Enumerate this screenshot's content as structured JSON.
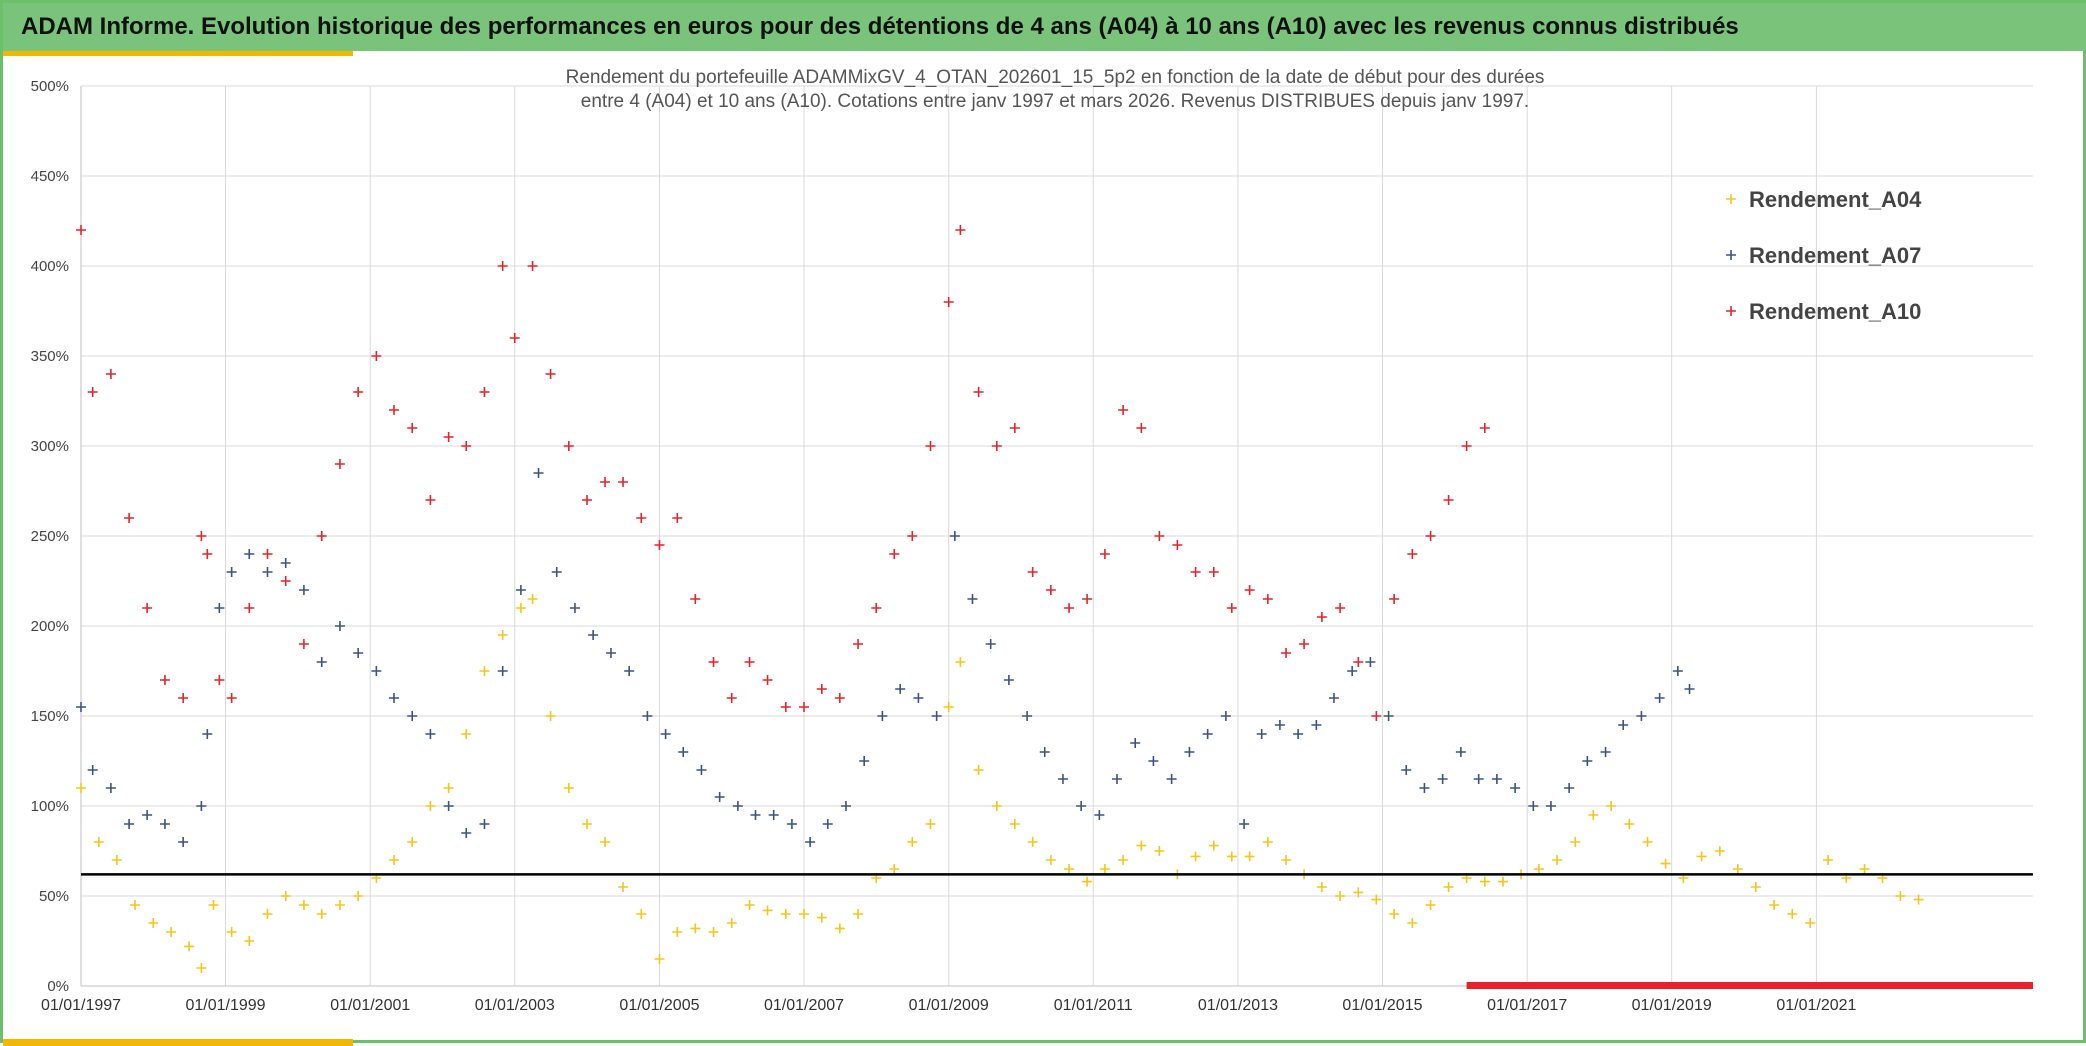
{
  "header": {
    "title": "ADAM Informe. Evolution historique des performances en euros pour des détentions de 4 ans (A04) à 10 ans (A10) avec les revenus connus distribués"
  },
  "colors": {
    "header_bg": "#79c47a",
    "accent": "#f2b800",
    "series_A04": "#f5c518",
    "series_A07": "#3b5580",
    "series_A10": "#e3242b",
    "reference_line": "#000000",
    "bottom_band": "#e3242b"
  },
  "chart_data": {
    "type": "scatter",
    "title_line1": "Rendement du portefeuille ADAMMixGV_4_OTAN_202601_15_5p2  en fonction de la date de début pour des durées",
    "title_line2": "entre 4 (A04) et 10 ans (A10). Cotations entre janv 1997 et mars 2026. Revenus DISTRIBUES depuis janv 1997.",
    "xlabel": "",
    "ylabel": "",
    "x_range": [
      "1997-01-01",
      "2023-12-31"
    ],
    "ylim": [
      0,
      500
    ],
    "y_ticks": [
      0,
      50,
      100,
      150,
      200,
      250,
      300,
      350,
      400,
      450,
      500
    ],
    "y_tick_labels": [
      "0%",
      "50%",
      "100%",
      "150%",
      "200%",
      "250%",
      "300%",
      "350%",
      "400%",
      "450%",
      "500%"
    ],
    "x_ticks": [
      "1997-01-01",
      "1999-01-01",
      "2001-01-01",
      "2003-01-01",
      "2005-01-01",
      "2007-01-01",
      "2009-01-01",
      "2011-01-01",
      "2013-01-01",
      "2015-01-01",
      "2017-01-01",
      "2019-01-01",
      "2021-01-01"
    ],
    "x_tick_labels": [
      "01/01/1997",
      "01/01/1999",
      "01/01/2001",
      "01/01/2003",
      "01/01/2005",
      "01/01/2007",
      "01/01/2009",
      "01/01/2011",
      "01/01/2013",
      "01/01/2015",
      "01/01/2017",
      "01/01/2019",
      "01/01/2021"
    ],
    "grid": true,
    "legend_position": "top-right",
    "reference_line_y": 62,
    "marker": "+",
    "series": [
      {
        "name": "Rendement_A04",
        "x": [
          "1997-01-01",
          "1997-04-01",
          "1997-07-01",
          "1997-10-01",
          "1998-01-01",
          "1998-04-01",
          "1998-07-01",
          "1998-09-01",
          "1998-11-01",
          "1999-02-01",
          "1999-05-01",
          "1999-08-01",
          "1999-11-01",
          "2000-02-01",
          "2000-05-01",
          "2000-08-01",
          "2000-11-01",
          "2001-02-01",
          "2001-05-01",
          "2001-08-01",
          "2001-11-01",
          "2002-02-01",
          "2002-05-01",
          "2002-08-01",
          "2002-11-01",
          "2003-02-01",
          "2003-04-01",
          "2003-07-01",
          "2003-10-01",
          "2004-01-01",
          "2004-04-01",
          "2004-07-01",
          "2004-10-01",
          "2005-01-01",
          "2005-04-01",
          "2005-07-01",
          "2005-10-01",
          "2006-01-01",
          "2006-04-01",
          "2006-07-01",
          "2006-10-01",
          "2007-01-01",
          "2007-04-01",
          "2007-07-01",
          "2007-10-01",
          "2008-01-01",
          "2008-04-01",
          "2008-07-01",
          "2008-10-01",
          "2009-01-01",
          "2009-03-01",
          "2009-06-01",
          "2009-09-01",
          "2009-12-01",
          "2010-03-01",
          "2010-06-01",
          "2010-09-01",
          "2010-12-01",
          "2011-03-01",
          "2011-06-01",
          "2011-09-01",
          "2011-12-01",
          "2012-03-01",
          "2012-06-01",
          "2012-09-01",
          "2012-12-01",
          "2013-03-01",
          "2013-06-01",
          "2013-09-01",
          "2013-12-01",
          "2014-03-01",
          "2014-06-01",
          "2014-09-01",
          "2014-12-01",
          "2015-03-01",
          "2015-06-01",
          "2015-09-01",
          "2015-12-01",
          "2016-03-01",
          "2016-06-01",
          "2016-09-01",
          "2016-12-01",
          "2017-03-01",
          "2017-06-01",
          "2017-09-01",
          "2017-12-01",
          "2018-03-01",
          "2018-06-01",
          "2018-09-01",
          "2018-12-01",
          "2019-03-01",
          "2019-06-01",
          "2019-09-01",
          "2019-12-01",
          "2020-03-01",
          "2020-06-01",
          "2020-09-01",
          "2020-12-01",
          "2021-03-01",
          "2021-06-01",
          "2021-09-01",
          "2021-12-01",
          "2022-03-01",
          "2022-06-01"
        ],
        "y": [
          110,
          80,
          70,
          45,
          35,
          30,
          22,
          10,
          45,
          30,
          25,
          40,
          50,
          45,
          40,
          45,
          50,
          60,
          70,
          80,
          100,
          110,
          140,
          175,
          195,
          210,
          215,
          150,
          110,
          90,
          80,
          55,
          40,
          15,
          30,
          32,
          30,
          35,
          45,
          42,
          40,
          40,
          38,
          32,
          40,
          60,
          65,
          80,
          90,
          155,
          180,
          120,
          100,
          90,
          80,
          70,
          65,
          58,
          65,
          70,
          78,
          75,
          62,
          72,
          78,
          72,
          72,
          80,
          70,
          62,
          55,
          50,
          52,
          48,
          40,
          35,
          45,
          55,
          60,
          58,
          58,
          62,
          65,
          70,
          80,
          95,
          100,
          90,
          80,
          68,
          60,
          72,
          75,
          65,
          55,
          45,
          40,
          35,
          70,
          60,
          65,
          60,
          50,
          48
        ]
      },
      {
        "name": "Rendement_A07",
        "x": [
          "1997-01-01",
          "1997-03-01",
          "1997-06-01",
          "1997-09-01",
          "1997-12-01",
          "1998-03-01",
          "1998-06-01",
          "1998-09-01",
          "1998-10-01",
          "1998-12-01",
          "1999-02-01",
          "1999-05-01",
          "1999-08-01",
          "1999-11-01",
          "2000-02-01",
          "2000-05-01",
          "2000-08-01",
          "2000-11-01",
          "2001-02-01",
          "2001-05-01",
          "2001-08-01",
          "2001-11-01",
          "2002-02-01",
          "2002-05-01",
          "2002-08-01",
          "2002-11-01",
          "2003-02-01",
          "2003-05-01",
          "2003-08-01",
          "2003-11-01",
          "2004-02-01",
          "2004-05-01",
          "2004-08-01",
          "2004-11-01",
          "2005-02-01",
          "2005-05-01",
          "2005-08-01",
          "2005-11-01",
          "2006-02-01",
          "2006-05-01",
          "2006-08-01",
          "2006-11-01",
          "2007-02-01",
          "2007-05-01",
          "2007-08-01",
          "2007-11-01",
          "2008-02-01",
          "2008-05-01",
          "2008-08-01",
          "2008-11-01",
          "2009-02-01",
          "2009-05-01",
          "2009-08-01",
          "2009-11-01",
          "2010-02-01",
          "2010-05-01",
          "2010-08-01",
          "2010-11-01",
          "2011-02-01",
          "2011-05-01",
          "2011-08-01",
          "2011-11-01",
          "2012-02-01",
          "2012-05-01",
          "2012-08-01",
          "2012-11-01",
          "2013-02-01",
          "2013-05-01",
          "2013-08-01",
          "2013-11-01",
          "2014-02-01",
          "2014-05-01",
          "2014-08-01",
          "2014-11-01",
          "2015-02-01",
          "2015-05-01",
          "2015-08-01",
          "2015-11-01",
          "2016-02-01",
          "2016-05-01",
          "2016-08-01",
          "2016-11-01",
          "2017-02-01",
          "2017-05-01",
          "2017-08-01",
          "2017-11-01",
          "2018-02-01",
          "2018-05-01",
          "2018-08-01",
          "2018-11-01",
          "2019-02-01",
          "2019-04-01"
        ],
        "y": [
          155,
          120,
          110,
          90,
          95,
          90,
          80,
          100,
          140,
          210,
          230,
          240,
          230,
          235,
          220,
          180,
          200,
          185,
          175,
          160,
          150,
          140,
          100,
          85,
          90,
          175,
          220,
          285,
          230,
          210,
          195,
          185,
          175,
          150,
          140,
          130,
          120,
          105,
          100,
          95,
          95,
          90,
          80,
          90,
          100,
          125,
          150,
          165,
          160,
          150,
          250,
          215,
          190,
          170,
          150,
          130,
          115,
          100,
          95,
          115,
          135,
          125,
          115,
          130,
          140,
          150,
          90,
          140,
          145,
          140,
          145,
          160,
          175,
          180,
          150,
          120,
          110,
          115,
          130,
          115,
          115,
          110,
          100,
          100,
          110,
          125,
          130,
          145,
          150,
          160,
          175,
          165
        ]
      },
      {
        "name": "Rendement_A10",
        "x": [
          "1997-01-01",
          "1997-03-01",
          "1997-06-01",
          "1997-09-01",
          "1997-12-01",
          "1998-03-01",
          "1998-06-01",
          "1998-09-01",
          "1998-10-01",
          "1998-12-01",
          "1999-02-01",
          "1999-05-01",
          "1999-08-01",
          "1999-11-01",
          "2000-02-01",
          "2000-05-01",
          "2000-08-01",
          "2000-11-01",
          "2001-02-01",
          "2001-05-01",
          "2001-08-01",
          "2001-11-01",
          "2002-02-01",
          "2002-05-01",
          "2002-08-01",
          "2002-11-01",
          "2003-01-01",
          "2003-04-01",
          "2003-07-01",
          "2003-10-01",
          "2004-01-01",
          "2004-04-01",
          "2004-07-01",
          "2004-10-01",
          "2005-01-01",
          "2005-04-01",
          "2005-07-01",
          "2005-10-01",
          "2006-01-01",
          "2006-04-01",
          "2006-07-01",
          "2006-10-01",
          "2007-01-01",
          "2007-04-01",
          "2007-07-01",
          "2007-10-01",
          "2008-01-01",
          "2008-04-01",
          "2008-07-01",
          "2008-10-01",
          "2009-01-01",
          "2009-03-01",
          "2009-06-01",
          "2009-09-01",
          "2009-12-01",
          "2010-03-01",
          "2010-06-01",
          "2010-09-01",
          "2010-12-01",
          "2011-03-01",
          "2011-06-01",
          "2011-09-01",
          "2011-12-01",
          "2012-03-01",
          "2012-06-01",
          "2012-09-01",
          "2012-12-01",
          "2013-03-01",
          "2013-06-01",
          "2013-09-01",
          "2013-12-01",
          "2014-03-01",
          "2014-06-01",
          "2014-09-01",
          "2014-12-01",
          "2015-03-01",
          "2015-06-01",
          "2015-09-01",
          "2015-12-01",
          "2016-03-01",
          "2016-06-01"
        ],
        "y": [
          420,
          330,
          340,
          260,
          210,
          170,
          160,
          250,
          240,
          170,
          160,
          210,
          240,
          225,
          190,
          250,
          290,
          330,
          350,
          320,
          310,
          270,
          305,
          300,
          330,
          400,
          360,
          400,
          340,
          300,
          270,
          280,
          280,
          260,
          245,
          260,
          215,
          180,
          160,
          180,
          170,
          155,
          155,
          165,
          160,
          190,
          210,
          240,
          250,
          300,
          380,
          420,
          330,
          300,
          310,
          230,
          220,
          210,
          215,
          240,
          320,
          310,
          250,
          245,
          230,
          230,
          210,
          220,
          215,
          185,
          190,
          205,
          210,
          180,
          150,
          215,
          240,
          250,
          270,
          300,
          310
        ]
      }
    ],
    "legend": [
      "Rendement_A04",
      "Rendement_A07",
      "Rendement_A10"
    ],
    "annotations": [
      {
        "type": "band",
        "x_start": "2016-03-01",
        "x_end": "2023-12-31",
        "y": 0,
        "color": "#e3242b"
      }
    ]
  }
}
